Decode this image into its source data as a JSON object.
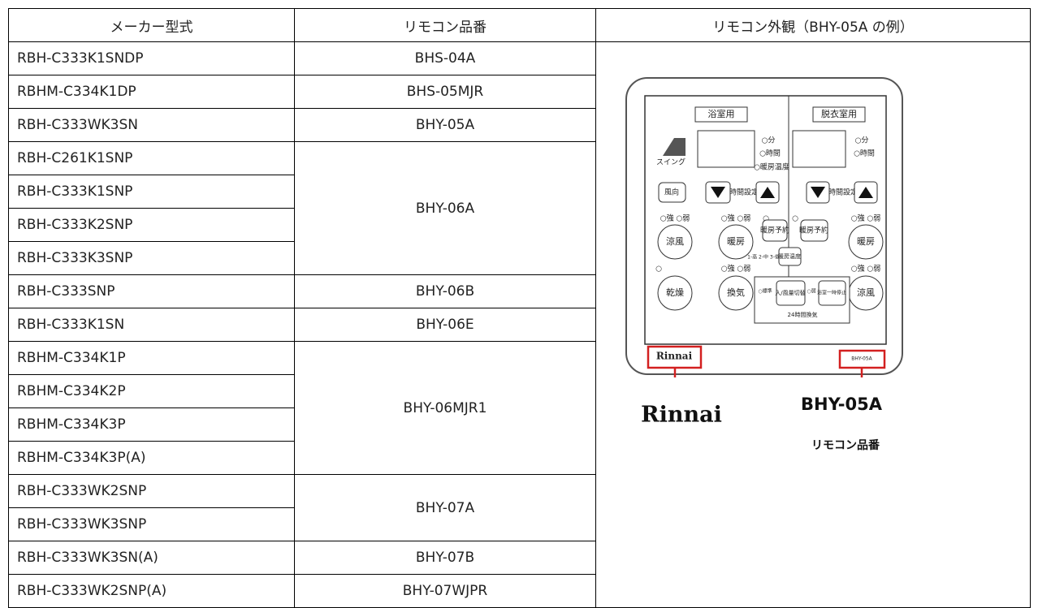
{
  "table": {
    "header": [
      "メーカー型式",
      "リモコン品番",
      "リモコン外観（BHY-05A の例）"
    ],
    "groups": [
      {
        "remote": "BHS-04A",
        "models": [
          "RBH-C333K1SNDP"
        ]
      },
      {
        "remote": "BHS-05MJR",
        "models": [
          "RBHM-C334K1DP"
        ]
      },
      {
        "remote": "BHY-05A",
        "models": [
          "RBH-C333WK3SN"
        ]
      },
      {
        "remote": "BHY-06A",
        "models": [
          "RBH-C261K1SNP",
          "RBH-C333K1SNP",
          "RBH-C333K2SNP",
          "RBH-C333K3SNP"
        ]
      },
      {
        "remote": "BHY-06B",
        "models": [
          "RBH-C333SNP"
        ]
      },
      {
        "remote": "BHY-06E",
        "models": [
          "RBH-C333K1SN"
        ]
      },
      {
        "remote": "BHY-06MJR1",
        "models": [
          "RBHM-C334K1P",
          "RBHM-C334K2P",
          "RBHM-C334K3P",
          "RBHM-C334K3P(A)"
        ]
      },
      {
        "remote": "BHY-07A",
        "models": [
          "RBH-C333WK2SNP",
          "RBH-C333WK3SNP"
        ]
      },
      {
        "remote": "BHY-07B",
        "models": [
          "RBH-C333WK3SN(A)"
        ]
      },
      {
        "remote": "BHY-07WJPR",
        "models": [
          "RBH-C333WK2SNP(A)"
        ]
      }
    ]
  },
  "illustration": {
    "labels": [
      "浴室用",
      "脱衣室用",
      "○分",
      "○時間",
      "○暖房温度",
      "○分",
      "○時間",
      "スイング",
      "風向",
      "時間設定",
      "時間設定",
      "○強 ○弱",
      "○強 ○弱",
      "○",
      "○",
      "○強 ○弱",
      "涼風",
      "暖房",
      "暖房予約",
      "暖房予約",
      "暖房",
      "1-高 2-中 3-低",
      "暖房温度",
      "○",
      "○強 ○弱",
      "○強 ○弱",
      "乾燥",
      "換気",
      "涼風",
      "○標準",
      "入/風量切替",
      "○弱",
      "浴室一時停止",
      "24時間換気",
      "Rinnai",
      "BHY-05A"
    ],
    "brand": "Rinnai",
    "model": "BHY-05A",
    "caption": "リモコン品番"
  }
}
